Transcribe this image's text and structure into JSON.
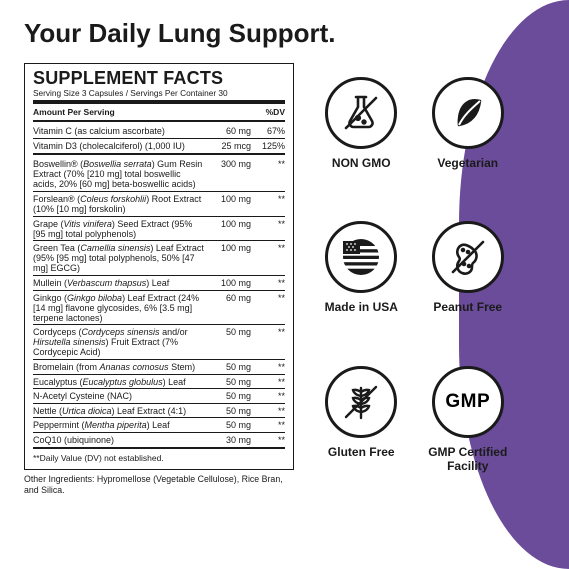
{
  "title": "Your Daily Lung Support.",
  "panel": {
    "heading": "SUPPLEMENT FACTS",
    "serving": "Serving Size 3 Capsules / Servings Per Container 30",
    "header_amount": "Amount Per Serving",
    "header_dv": "%DV",
    "sec1": [
      {
        "name": "Vitamin C (as calcium ascorbate)",
        "amt": "60 mg",
        "dv": "67%"
      },
      {
        "name": "Vitamin D3 (cholecalciferol) (1,000 IU)",
        "amt": "25 mcg",
        "dv": "125%"
      }
    ],
    "sec2": [
      {
        "name": "Boswellin® (<em>Boswellia serrata</em>) Gum Resin Extract (70% [210 mg] total boswellic acids, 20% [60 mg] beta-boswellic acids)",
        "amt": "300 mg",
        "dv": "**"
      },
      {
        "name": "Forslean® (<em>Coleus forskohlii</em>) Root Extract (10% [10 mg] forskolin)",
        "amt": "100 mg",
        "dv": "**"
      },
      {
        "name": "Grape (<em>Vitis vinifera</em>) Seed Extract (95% [95 mg] total polyphenols)",
        "amt": "100 mg",
        "dv": "**"
      },
      {
        "name": "Green Tea (<em>Camellia sinensis</em>) Leaf Extract (95% [95 mg] total polyphenols, 50% [47 mg] EGCG)",
        "amt": "100 mg",
        "dv": "**"
      },
      {
        "name": "Mullein (<em>Verbascum thapsus</em>) Leaf",
        "amt": "100 mg",
        "dv": "**"
      },
      {
        "name": "Ginkgo (<em>Ginkgo biloba</em>) Leaf Extract (24% [14 mg] flavone glycosides, 6% [3.5 mg] terpene lactones)",
        "amt": "60 mg",
        "dv": "**"
      },
      {
        "name": "Cordyceps (<em>Cordyceps sinensis</em> and/or <em>Hirsutella sinensis</em>) Fruit Extract (7% Cordycepic Acid)",
        "amt": "50 mg",
        "dv": "**"
      },
      {
        "name": "Bromelain (from <em>Ananas comosus</em> Stem)",
        "amt": "50 mg",
        "dv": "**"
      },
      {
        "name": "Eucalyptus (<em>Eucalyptus globulus</em>) Leaf",
        "amt": "50 mg",
        "dv": "**"
      },
      {
        "name": "N-Acetyl Cysteine (NAC)",
        "amt": "50 mg",
        "dv": "**"
      },
      {
        "name": "Nettle (<em>Urtica dioica</em>) Leaf Extract (4:1)",
        "amt": "50 mg",
        "dv": "**"
      },
      {
        "name": "Peppermint (<em>Mentha piperita</em>) Leaf",
        "amt": "50 mg",
        "dv": "**"
      },
      {
        "name": "CoQ10 (ubiquinone)",
        "amt": "30 mg",
        "dv": "**"
      }
    ],
    "footnote": "**Daily Value (DV) not established.",
    "other": "Other Ingredients: Hypromellose (Vegetable Cellulose), Rice Bran, and Silica."
  },
  "badges": [
    {
      "id": "non-gmo",
      "label": "NON GMO"
    },
    {
      "id": "vegetarian",
      "label": "Vegetarian"
    },
    {
      "id": "made-usa",
      "label": "Made in USA"
    },
    {
      "id": "peanut-free",
      "label": "Peanut Free"
    },
    {
      "id": "gluten-free",
      "label": "Gluten Free"
    },
    {
      "id": "gmp",
      "label": "GMP Certified Facility"
    }
  ],
  "colors": {
    "accent": "#6b4c9a",
    "ink": "#1a1a1a"
  }
}
